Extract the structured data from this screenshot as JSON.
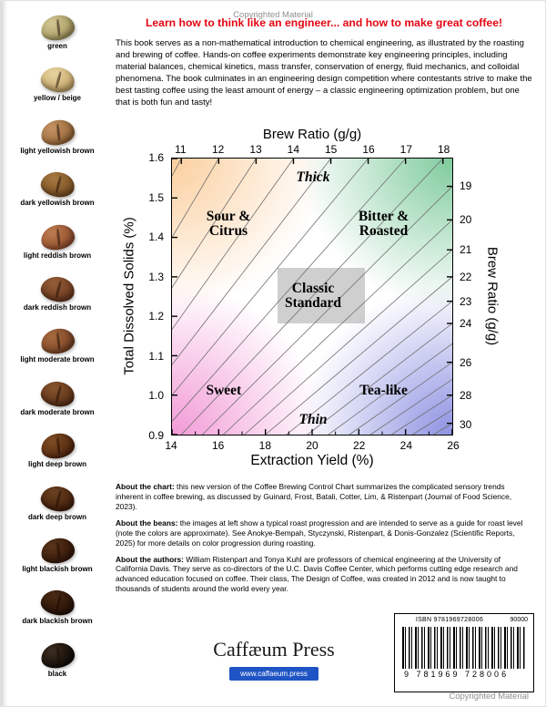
{
  "watermark_top": "Copyrighted Material",
  "watermark_bottom": "Copyrighted Material",
  "title": "Learn how to think like an engineer... and how to make great coffee!",
  "intro": "This book serves as a non-mathematical introduction to chemical engineering, as illustrated by the roasting and brewing of coffee. Hands-on coffee experiments demonstrate key engineering principles, including material balances, chemical kinetics, mass transfer, conservation of energy, fluid mechanics, and colloidal phenomena. The book culminates in an engineering design competition where contestants strive to make the best tasting coffee using the least amount of energy – a classic engineering optimization problem, but one that is both fun and tasty!",
  "beans": {
    "items": [
      {
        "label": "green",
        "color": "#a89a62",
        "highlight": "#d2c693"
      },
      {
        "label": "yellow / beige",
        "color": "#c7a76a",
        "highlight": "#e8d5a2"
      },
      {
        "label": "light yellowish brown",
        "color": "#9a6a3a",
        "highlight": "#c29263"
      },
      {
        "label": "dark yellowish brown",
        "color": "#7e5226",
        "highlight": "#a67940"
      },
      {
        "label": "light reddish brown",
        "color": "#95502f",
        "highlight": "#bc7c4f"
      },
      {
        "label": "dark reddish brown",
        "color": "#6e3a20",
        "highlight": "#955e38"
      },
      {
        "label": "light moderate brown",
        "color": "#7d4526",
        "highlight": "#a56a3d"
      },
      {
        "label": "dark moderate brown",
        "color": "#5f3218",
        "highlight": "#86552e"
      },
      {
        "label": "light deep brown",
        "color": "#56290f",
        "highlight": "#7c4c24"
      },
      {
        "label": "dark deep brown",
        "color": "#46200c",
        "highlight": "#6a4220"
      },
      {
        "label": "light blackish brown",
        "color": "#38190a",
        "highlight": "#58341a"
      },
      {
        "label": "dark blackish brown",
        "color": "#2a1208",
        "highlight": "#482b13"
      },
      {
        "label": "black",
        "color": "#140c07",
        "highlight": "#3c2e21"
      }
    ]
  },
  "chart_data": {
    "type": "line",
    "title": "Coffee Brewing Control Chart",
    "xlabel": "Extraction Yield (%)",
    "ylabel": "Total Dissolved Solids (%)",
    "top_axis_label": "Brew Ratio (g/g)",
    "right_axis_label": "Brew Ratio (g/g)",
    "xlim": [
      14,
      26
    ],
    "ylim": [
      0.9,
      1.6
    ],
    "x_ticks": [
      14,
      16,
      18,
      20,
      22,
      24,
      26
    ],
    "x_minor_ticks": [
      15,
      17,
      19,
      21,
      23,
      25
    ],
    "y_ticks": [
      0.9,
      1.0,
      1.1,
      1.2,
      1.3,
      1.4,
      1.5,
      1.6
    ],
    "top_brew_ratio_ticks": [
      11,
      12,
      13,
      14,
      15,
      16,
      17,
      18
    ],
    "right_brew_ratio_ticks": [
      19,
      20,
      21,
      22,
      23,
      24,
      26,
      28,
      30
    ],
    "brew_ratio_lines": [
      11,
      12,
      13,
      14,
      15,
      16,
      17,
      18,
      19,
      20,
      21,
      22,
      23,
      24,
      25,
      26,
      27,
      28,
      29,
      30
    ],
    "water_absorption_ratio": 2,
    "line_model": "TDS(%) = EY(%) / (BrewRatio - 2)",
    "grid": false,
    "legend": "none",
    "classic_box": {
      "x": [
        18.5,
        22.2
      ],
      "y": [
        1.185,
        1.325
      ]
    },
    "regions": [
      {
        "label": "Thick",
        "x": 20.0,
        "y": 1.552,
        "italic": true
      },
      {
        "label": "Sour &\nCitrus",
        "x": 16.4,
        "y": 1.435,
        "italic": false
      },
      {
        "label": "Bitter &\nRoasted",
        "x": 23.0,
        "y": 1.435,
        "italic": false
      },
      {
        "label": "Classic\nStandard",
        "x": 20.0,
        "y": 1.253,
        "italic": false
      },
      {
        "label": "Sweet",
        "x": 16.2,
        "y": 1.015,
        "italic": false
      },
      {
        "label": "Tea-like",
        "x": 23.0,
        "y": 1.015,
        "italic": false
      },
      {
        "label": "Thin",
        "x": 20.0,
        "y": 0.942,
        "italic": true
      }
    ],
    "corner_colors": {
      "top_left": "#fbcf9e",
      "top_right": "#7fcb9d",
      "bottom_left": "#f29ad6",
      "bottom_right": "#8e92e2"
    }
  },
  "about": [
    {
      "lead": "About the chart:",
      "text": " this new version of the Coffee Brewing Control Chart summarizes the complicated sensory trends inherent in coffee brewing, as discussed by Guinard, Frost, Batali, Cotter, Lim, & Ristenpart (Journal of Food Science, 2023)."
    },
    {
      "lead": "About the beans:",
      "text": " the images at left show a typical roast progression and are intended to serve as a guide for roast level (note the colors are approximate). See Anokye-Bempah, Styczynski, Ristenpart, & Donis-Gonzalez (Scientific Reports, 2025) for more details on color progression during roasting."
    },
    {
      "lead": "About the authors:",
      "text": " William Ristenpart and Tonya Kuhl are professors of chemical engineering at the University of California Davis. They serve as co-directors of the U.C. Davis Coffee Center, which performs cutting edge research and advanced education focused on coffee. Their class, The Design of Coffee, was created in 2012 and is now taught to thousands of students around the world every year."
    }
  ],
  "publisher": {
    "name": "Caffæum Press",
    "url": "www.caffaeum.press"
  },
  "barcode": {
    "isbn_top": "ISBN 9781969728006",
    "price_code": "90000",
    "digits": "9 781969 728006"
  }
}
